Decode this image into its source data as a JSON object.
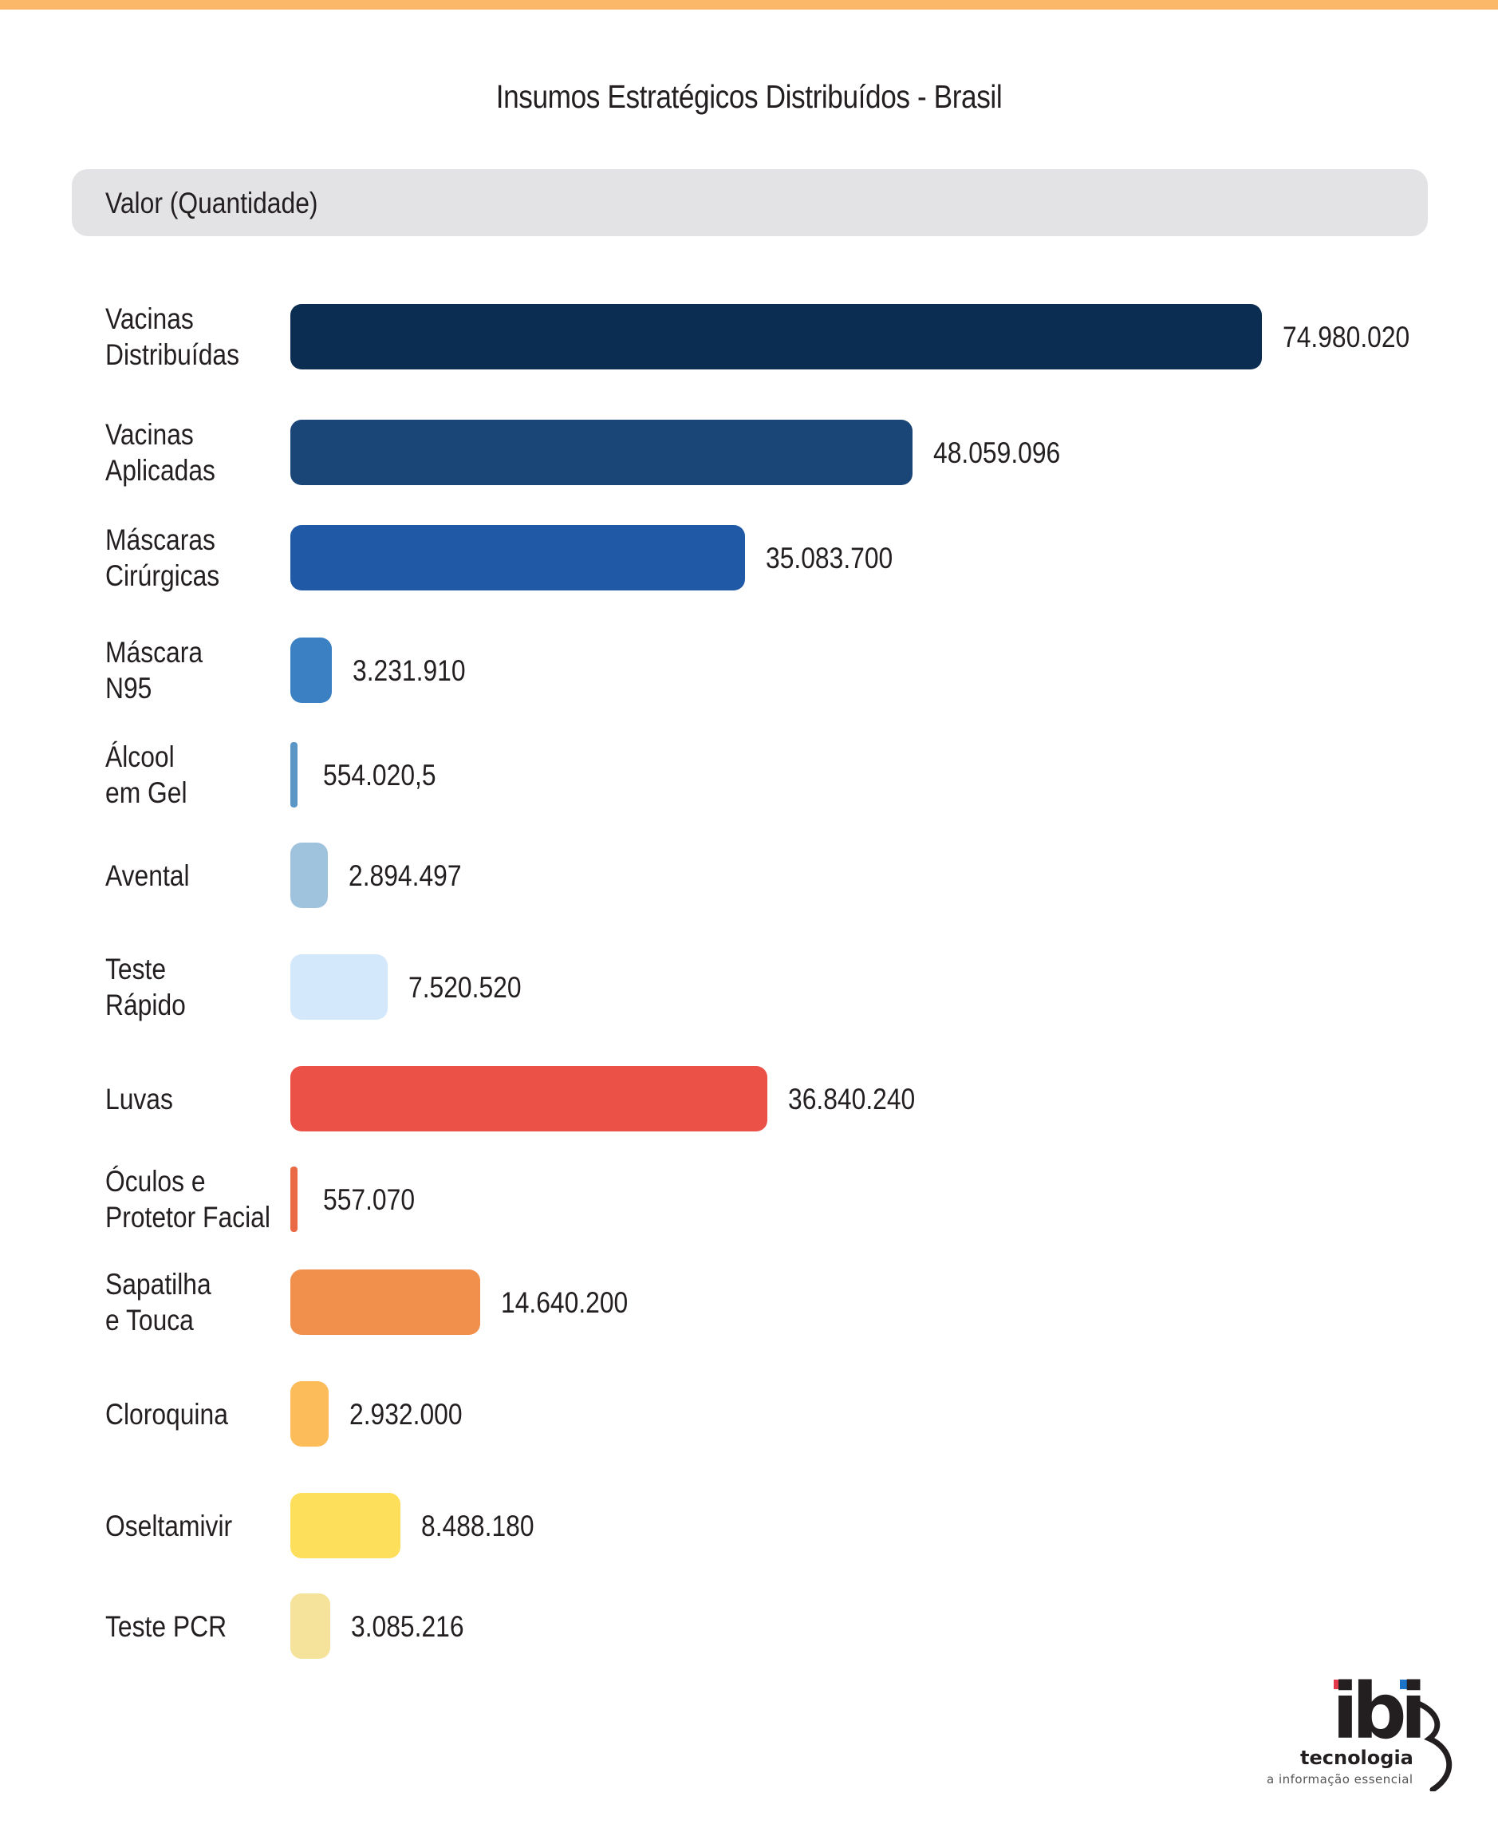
{
  "top_bar_color": "#fbb869",
  "chart_data": {
    "type": "bar",
    "orientation": "horizontal",
    "title": "Insumos Estratégicos Distribuídos - Brasil",
    "header_label": "Valor (Quantidade)",
    "categories": [
      "Vacinas\nDistribuídas",
      "Vacinas\nAplicadas",
      "Máscaras\nCirúrgicas",
      "Máscara\nN95",
      "Álcool\nem Gel",
      "Avental",
      "Teste\nRápido",
      "Luvas",
      "Óculos e\nProtetor Facial",
      "Sapatilha\ne Touca",
      "Cloroquina",
      "Oseltamivir",
      "Teste PCR"
    ],
    "values": [
      74980020,
      48059096,
      35083700,
      3231910,
      554020.5,
      2894497,
      7520520,
      36840240,
      557070,
      14640200,
      2932000,
      8488180,
      3085216
    ],
    "value_labels": [
      "74.980.020",
      "48.059.096",
      "35.083.700",
      "3.231.910",
      "554.020,5",
      "2.894.497",
      "7.520.520",
      "36.840.240",
      "557.070",
      "14.640.200",
      "2.932.000",
      "8.488.180",
      "3.085.216"
    ],
    "colors": [
      "#0b2d51",
      "#1a4677",
      "#2059a6",
      "#3a80c2",
      "#5b97c6",
      "#9fc3dc",
      "#d3e8fa",
      "#eb5146",
      "#ea6a45",
      "#f1904c",
      "#fdbc5a",
      "#fedf5b",
      "#f5e39b"
    ],
    "xlim": [
      0,
      75000000
    ],
    "grid": false,
    "legend": "none"
  },
  "logo": {
    "mark": "ibi",
    "name": "tecnologia",
    "tagline": "a informação essencial",
    "dot_colors": [
      "#e33a4b",
      "#1a73c9"
    ]
  }
}
